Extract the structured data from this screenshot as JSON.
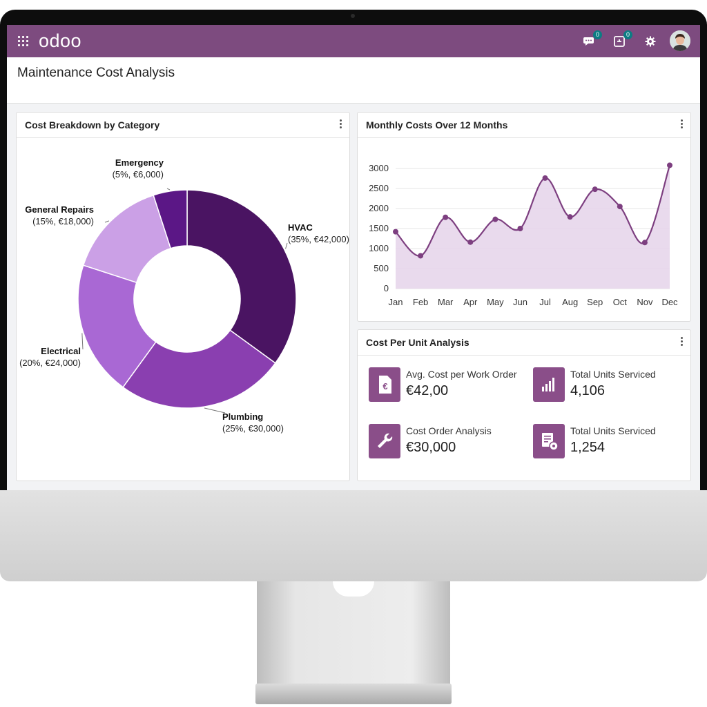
{
  "app": {
    "logo": "odoo",
    "notifications": {
      "messages_count": "0",
      "activities_count": "0"
    },
    "brand_color": "#7d4b7f"
  },
  "page": {
    "title": "Maintenance Cost Analysis"
  },
  "donut_card": {
    "title": "Cost Breakdown by Category"
  },
  "line_card": {
    "title": "Monthly Costs Over 12 Months"
  },
  "unit_card": {
    "title": "Cost Per Unit Analysis",
    "metrics": [
      {
        "label": "Avg. Cost per Work Order",
        "value": "€42,00",
        "icon": "euro-document-icon"
      },
      {
        "label": "Total Units Serviced",
        "value": "4,106",
        "icon": "bar-chart-icon"
      },
      {
        "label": "Cost Order Analysis",
        "value": "€30,000",
        "icon": "wrench-icon"
      },
      {
        "label": "Total Units Serviced",
        "value": "1,254",
        "icon": "report-gear-icon"
      }
    ]
  },
  "chart_data": [
    {
      "type": "pie",
      "title": "Cost Breakdown by Category",
      "slices": [
        {
          "label": "HVAC",
          "detail": "(35%, €42,000)",
          "percent": 35,
          "value": 42000,
          "color": "#4a1462"
        },
        {
          "label": "Plumbing",
          "detail": "(25%, €30,000)",
          "percent": 25,
          "value": 30000,
          "color": "#8a3fb0"
        },
        {
          "label": "Electrical",
          "detail": "(20%, €24,000)",
          "percent": 20,
          "value": 24000,
          "color": "#a968d4"
        },
        {
          "label": "General Repairs",
          "detail": "(15%, €18,000)",
          "percent": 15,
          "value": 18000,
          "color": "#cba0e6"
        },
        {
          "label": "Emergency",
          "detail": "(5%, €6,000)",
          "percent": 5,
          "value": 6000,
          "color": "#5b1786"
        }
      ]
    },
    {
      "type": "area",
      "title": "Monthly Costs Over 12 Months",
      "categories": [
        "Jan",
        "Feb",
        "Mar",
        "Apr",
        "May",
        "Jun",
        "Jul",
        "Aug",
        "Sep",
        "Oct",
        "Nov",
        "Dec"
      ],
      "values": [
        1420,
        820,
        1780,
        1160,
        1730,
        1500,
        2760,
        1790,
        2480,
        2050,
        1150,
        3080
      ],
      "yticks": [
        0,
        500,
        1000,
        1500,
        2000,
        2500,
        3000
      ],
      "ylim": [
        0,
        3000
      ],
      "line_color": "#7d3f80",
      "fill_color": "#e5d3ea",
      "grid": true
    }
  ]
}
